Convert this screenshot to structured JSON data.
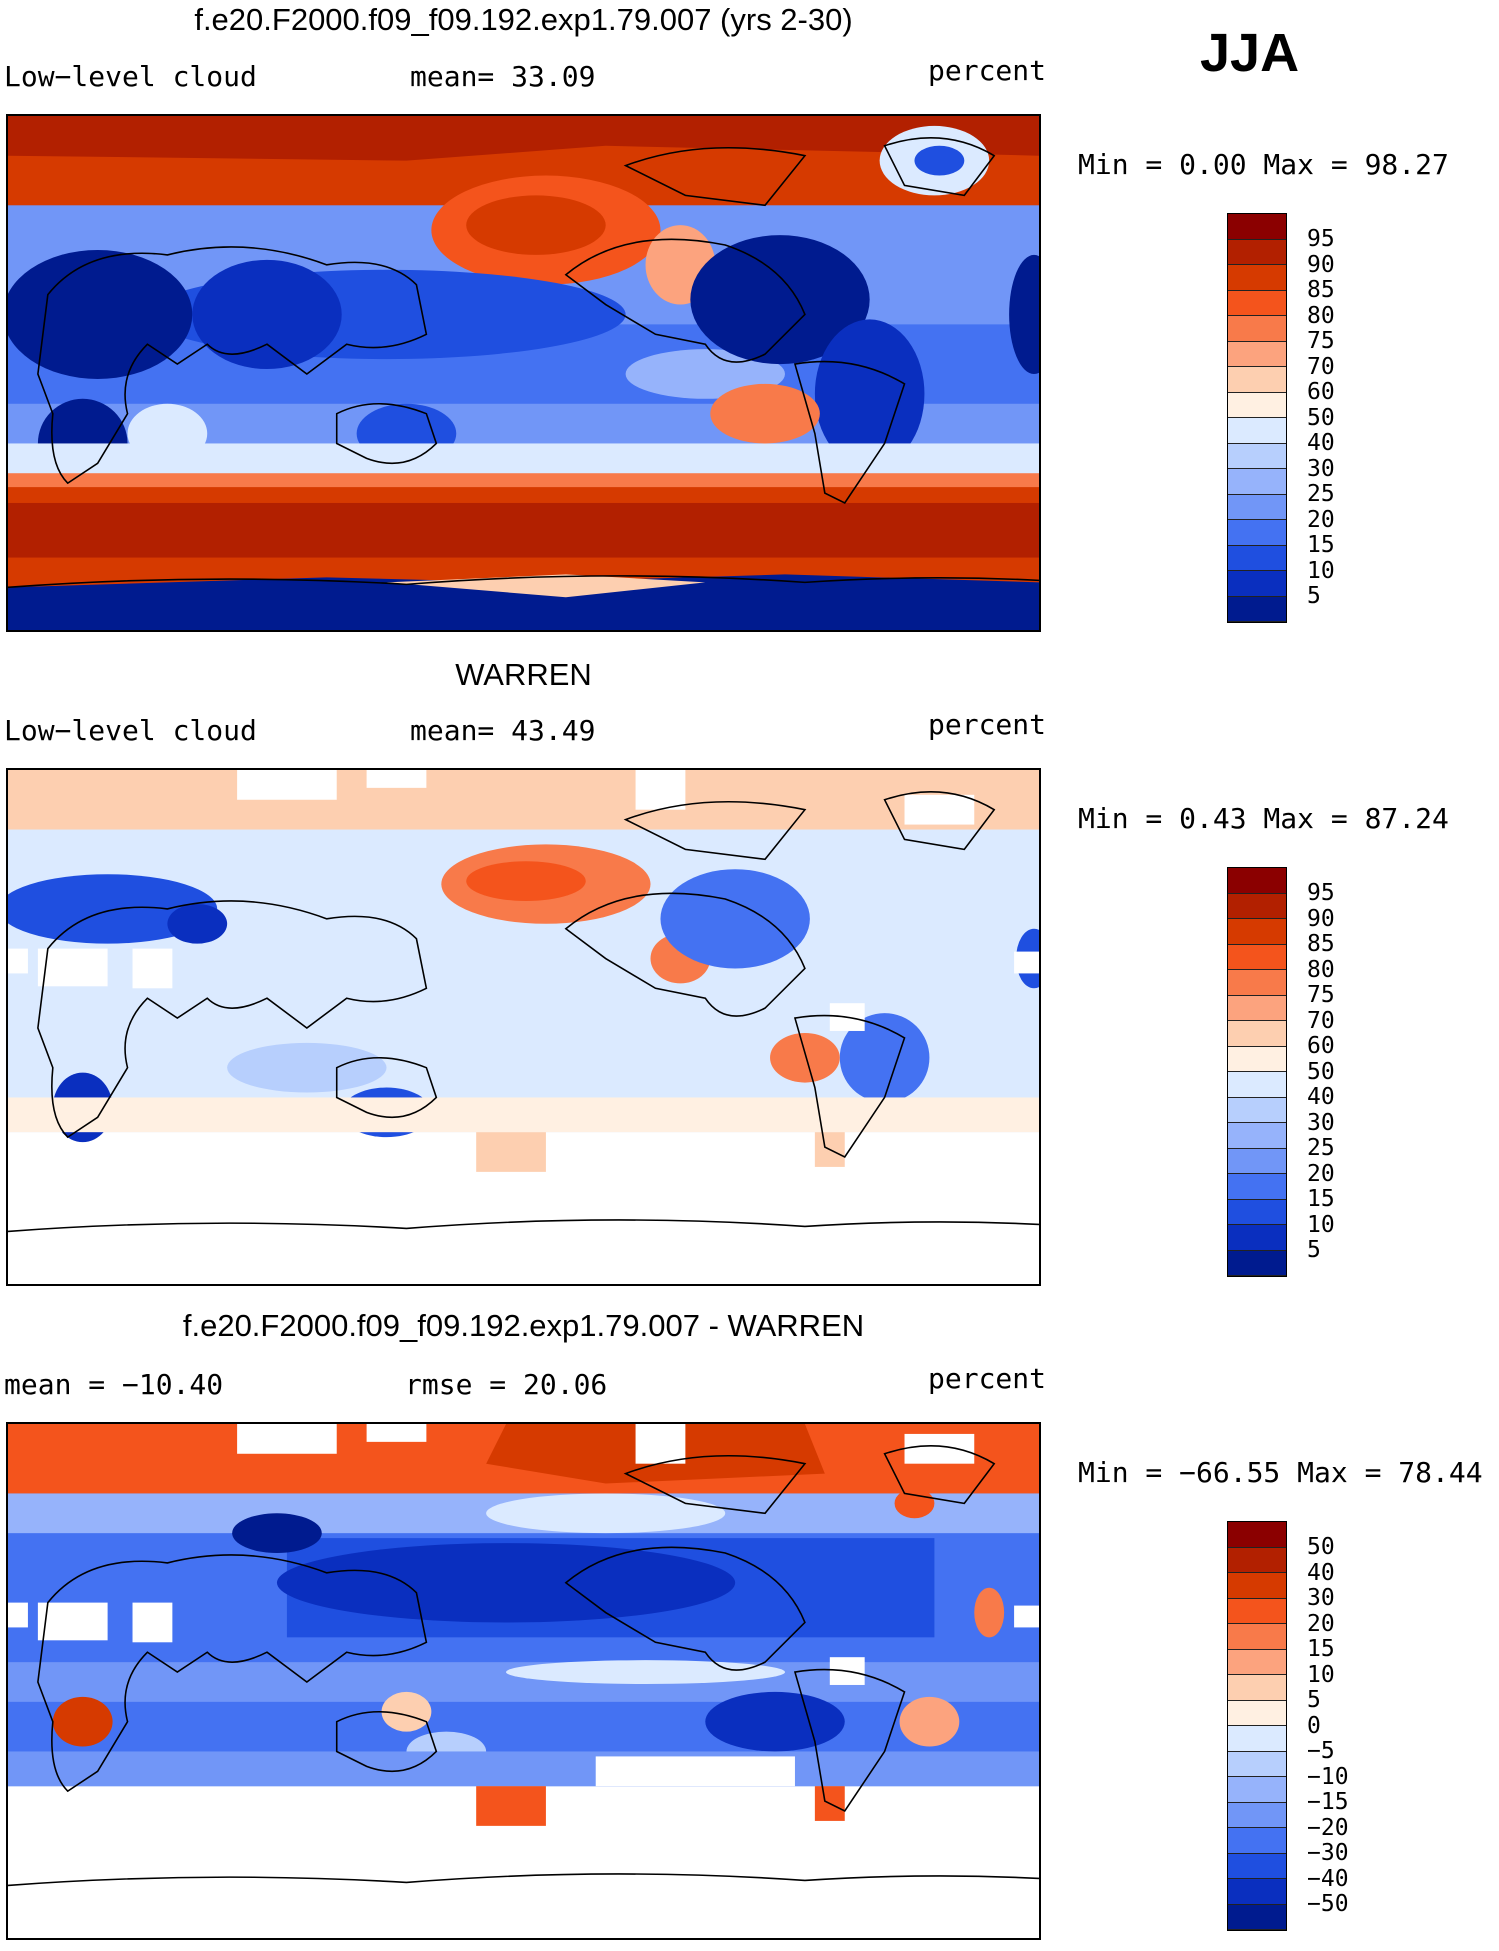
{
  "season": "JJA",
  "panels": [
    {
      "title": "f.e20.F2000.f09_f09.192.exp1.79.007 (yrs 2-30)",
      "left_label": "Low−level cloud",
      "mid_label": "mean=   33.09",
      "units": "percent",
      "minmax": "Min =     0.00 Max =    98.27",
      "colorbar": [
        "95",
        "90",
        "85",
        "80",
        "75",
        "70",
        "60",
        "50",
        "40",
        "30",
        "25",
        "20",
        "15",
        "10",
        "5"
      ],
      "colors": [
        "#8b0000",
        "#b22000",
        "#d63a00",
        "#f4541c",
        "#f87a4a",
        "#fca37e",
        "#fdcfb0",
        "#fff0e2",
        "#dbeaff",
        "#b7cffd",
        "#96b3fb",
        "#7196f7",
        "#4472f2",
        "#1f4fe0",
        "#0a2fbf",
        "#001b8f"
      ]
    },
    {
      "title": "WARREN",
      "left_label": "Low−level cloud",
      "mid_label": "mean=   43.49",
      "units": "percent",
      "minmax": "Min =     0.43 Max =    87.24",
      "colorbar": [
        "95",
        "90",
        "85",
        "80",
        "75",
        "70",
        "60",
        "50",
        "40",
        "30",
        "25",
        "20",
        "15",
        "10",
        "5"
      ],
      "colors": [
        "#8b0000",
        "#b22000",
        "#d63a00",
        "#f4541c",
        "#f87a4a",
        "#fca37e",
        "#fdcfb0",
        "#fff0e2",
        "#dbeaff",
        "#b7cffd",
        "#96b3fb",
        "#7196f7",
        "#4472f2",
        "#1f4fe0",
        "#0a2fbf",
        "#001b8f"
      ]
    },
    {
      "title": "f.e20.F2000.f09_f09.192.exp1.79.007 - WARREN",
      "left_label": "mean = −10.40",
      "mid_label": "rmse =   20.06",
      "units": "percent",
      "minmax": "Min = −66.55 Max =   78.44",
      "colorbar": [
        "50",
        "40",
        "30",
        "20",
        "15",
        "10",
        "5",
        "0",
        "−5",
        "−10",
        "−15",
        "−20",
        "−30",
        "−40",
        "−50"
      ],
      "colors": [
        "#8b0000",
        "#b22000",
        "#d63a00",
        "#f4541c",
        "#f87a4a",
        "#fca37e",
        "#fdcfb0",
        "#fff0e2",
        "#dbeaff",
        "#b7cffd",
        "#96b3fb",
        "#7196f7",
        "#4472f2",
        "#1f4fe0",
        "#0a2fbf",
        "#001b8f"
      ]
    }
  ]
}
